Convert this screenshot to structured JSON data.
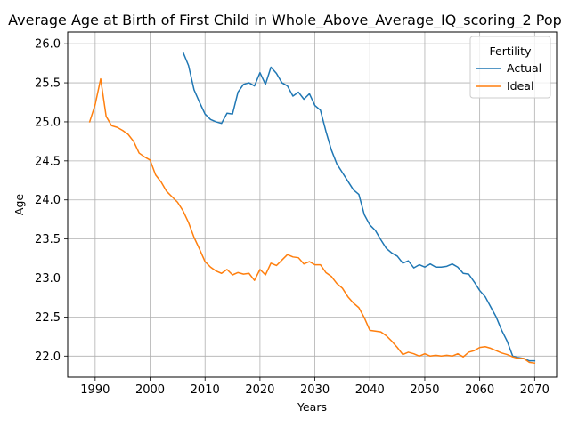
{
  "chart_data": {
    "type": "line",
    "title": "Average Age at Birth of First Child in Whole_Above_Average_IQ_scoring_2 Pop",
    "xlabel": "Years",
    "ylabel": "Age",
    "xlim": [
      1985,
      2074
    ],
    "ylim": [
      21.73,
      26.15
    ],
    "x_ticks": [
      1990,
      2000,
      2010,
      2020,
      2030,
      2040,
      2050,
      2060,
      2070
    ],
    "y_ticks": [
      22.0,
      22.5,
      23.0,
      23.5,
      24.0,
      24.5,
      25.0,
      25.5,
      26.0
    ],
    "x_tick_labels": [
      "1990",
      "2000",
      "2010",
      "2020",
      "2030",
      "2040",
      "2050",
      "2060",
      "2070"
    ],
    "y_tick_labels": [
      "22.0",
      "22.5",
      "23.0",
      "23.5",
      "24.0",
      "24.5",
      "25.0",
      "25.5",
      "26.0"
    ],
    "grid": true,
    "legend": {
      "title": "Fertility",
      "position": "top-right"
    },
    "series": [
      {
        "name": "Actual",
        "color": "#1f77b4",
        "x": [
          2006,
          2007,
          2008,
          2009,
          2010,
          2011,
          2012,
          2013,
          2014,
          2015,
          2016,
          2017,
          2018,
          2019,
          2020,
          2021,
          2022,
          2023,
          2024,
          2025,
          2026,
          2027,
          2028,
          2029,
          2030,
          2031,
          2032,
          2033,
          2034,
          2035,
          2036,
          2037,
          2038,
          2039,
          2040,
          2041,
          2042,
          2043,
          2044,
          2045,
          2046,
          2047,
          2048,
          2049,
          2050,
          2051,
          2052,
          2053,
          2054,
          2055,
          2056,
          2057,
          2058,
          2059,
          2060,
          2061,
          2062,
          2063,
          2064,
          2065,
          2066,
          2067,
          2068,
          2069,
          2070
        ],
        "y": [
          25.89,
          25.72,
          25.41,
          25.25,
          25.1,
          25.03,
          25.0,
          24.98,
          25.11,
          25.1,
          25.38,
          25.48,
          25.5,
          25.46,
          25.63,
          25.48,
          25.7,
          25.62,
          25.5,
          25.46,
          25.33,
          25.38,
          25.29,
          25.36,
          25.21,
          25.15,
          24.88,
          24.64,
          24.46,
          24.35,
          24.24,
          24.13,
          24.07,
          23.81,
          23.68,
          23.61,
          23.49,
          23.38,
          23.32,
          23.28,
          23.19,
          23.22,
          23.13,
          23.17,
          23.14,
          23.18,
          23.14,
          23.14,
          23.15,
          23.18,
          23.14,
          23.06,
          23.05,
          22.95,
          22.84,
          22.76,
          22.63,
          22.5,
          22.33,
          22.19,
          22.0,
          21.98,
          21.97,
          21.94,
          21.94
        ]
      },
      {
        "name": "Ideal",
        "color": "#ff7f0e",
        "x": [
          1989,
          1990,
          1991,
          1992,
          1993,
          1994,
          1995,
          1996,
          1997,
          1998,
          1999,
          2000,
          2001,
          2002,
          2003,
          2004,
          2005,
          2006,
          2007,
          2008,
          2009,
          2010,
          2011,
          2012,
          2013,
          2014,
          2015,
          2016,
          2017,
          2018,
          2019,
          2020,
          2021,
          2022,
          2023,
          2024,
          2025,
          2026,
          2027,
          2028,
          2029,
          2030,
          2031,
          2032,
          2033,
          2034,
          2035,
          2036,
          2037,
          2038,
          2039,
          2040,
          2041,
          2042,
          2043,
          2044,
          2045,
          2046,
          2047,
          2048,
          2049,
          2050,
          2051,
          2052,
          2053,
          2054,
          2055,
          2056,
          2057,
          2058,
          2059,
          2060,
          2061,
          2062,
          2063,
          2064,
          2065,
          2066,
          2067,
          2068,
          2069,
          2070
        ],
        "y": [
          25.0,
          25.22,
          25.55,
          25.07,
          24.95,
          24.93,
          24.89,
          24.84,
          24.75,
          24.6,
          24.55,
          24.51,
          24.32,
          24.23,
          24.11,
          24.04,
          23.97,
          23.86,
          23.71,
          23.52,
          23.37,
          23.21,
          23.14,
          23.09,
          23.06,
          23.11,
          23.04,
          23.07,
          23.05,
          23.06,
          22.97,
          23.11,
          23.04,
          23.19,
          23.16,
          23.23,
          23.3,
          23.27,
          23.26,
          23.18,
          23.21,
          23.17,
          23.17,
          23.07,
          23.02,
          22.93,
          22.87,
          22.76,
          22.68,
          22.62,
          22.49,
          22.33,
          22.32,
          22.31,
          22.26,
          22.19,
          22.11,
          22.02,
          22.05,
          22.03,
          22.0,
          22.03,
          22.0,
          22.01,
          22.0,
          22.01,
          22.0,
          22.03,
          21.99,
          22.05,
          22.07,
          22.11,
          22.12,
          22.1,
          22.07,
          22.04,
          22.02,
          21.99,
          21.97,
          21.97,
          21.92,
          21.91
        ]
      }
    ]
  }
}
